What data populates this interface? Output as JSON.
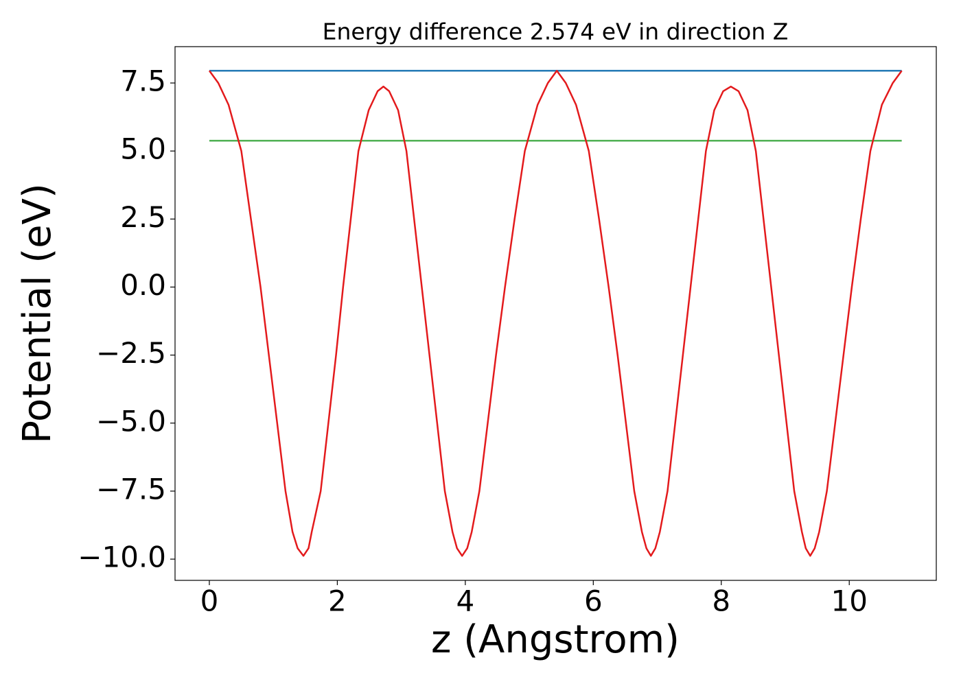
{
  "chart_data": {
    "type": "line",
    "title": "Energy difference 2.574 eV in direction Z",
    "xlabel": "z (Angstrom)",
    "ylabel": "Potential (eV)",
    "xlim": [
      -0.536,
      11.36
    ],
    "ylim": [
      -10.78,
      8.836
    ],
    "xticks": [
      0,
      2,
      4,
      6,
      8,
      10
    ],
    "yticks": [
      {
        "value": 7.5,
        "label": "7.5"
      },
      {
        "value": 5,
        "label": "5.0"
      },
      {
        "value": 2.5,
        "label": "2.5"
      },
      {
        "value": 0,
        "label": "0.0"
      },
      {
        "value": -2.5,
        "label": "−2.5"
      },
      {
        "value": -5,
        "label": "−5.0"
      },
      {
        "value": -7.5,
        "label": "−7.5"
      },
      {
        "value": -10,
        "label": "−10.0"
      }
    ],
    "grid": false,
    "series": [
      {
        "color": "#1f77b4",
        "x": [
          0,
          10.82
        ],
        "values": [
          7.95,
          7.95
        ]
      },
      {
        "color": "#4caf50",
        "x": [
          0,
          10.82
        ],
        "values": [
          5.38,
          5.38
        ]
      },
      {
        "color": "#e31a1c",
        "x": [
          0,
          0.14,
          0.3,
          0.5,
          0.65,
          0.8,
          0.93,
          1.06,
          1.19,
          1.3,
          1.38,
          1.47,
          1.55,
          1.6,
          1.74,
          1.86,
          1.98,
          2.09,
          2.21,
          2.33,
          2.49,
          2.63,
          2.72,
          2.81,
          2.95,
          3.08,
          3.2,
          3.32,
          3.44,
          3.56,
          3.68,
          3.8,
          3.87,
          3.95,
          4.03,
          4.1,
          4.22,
          4.35,
          4.48,
          4.62,
          4.77,
          4.93,
          5.13,
          5.29,
          5.43,
          5.57,
          5.73,
          5.93,
          6.09,
          6.24,
          6.38,
          6.51,
          6.64,
          6.76,
          6.83,
          6.9,
          6.97,
          7.04,
          7.16,
          7.28,
          7.4,
          7.52,
          7.64,
          7.76,
          7.89,
          8.03,
          8.15,
          8.27,
          8.41,
          8.54,
          8.66,
          8.78,
          8.9,
          9.02,
          9.14,
          9.26,
          9.32,
          9.39,
          9.46,
          9.53,
          9.65,
          9.78,
          9.91,
          10.04,
          10.18,
          10.33,
          10.51,
          10.68,
          10.82
        ],
        "values": [
          7.95,
          7.5,
          6.7,
          5,
          2.5,
          0,
          -2.5,
          -5,
          -7.5,
          -9,
          -9.6,
          -9.88,
          -9.6,
          -9,
          -7.5,
          -5,
          -2.5,
          0,
          2.5,
          5,
          6.5,
          7.2,
          7.37,
          7.2,
          6.5,
          5,
          2.5,
          0,
          -2.5,
          -5,
          -7.5,
          -9,
          -9.6,
          -9.88,
          -9.6,
          -9,
          -7.5,
          -5,
          -2.5,
          0,
          2.5,
          5,
          6.7,
          7.5,
          7.95,
          7.5,
          6.7,
          5,
          2.5,
          0,
          -2.5,
          -5,
          -7.5,
          -9,
          -9.6,
          -9.88,
          -9.6,
          -9,
          -7.5,
          -5,
          -2.5,
          0,
          2.5,
          5,
          6.5,
          7.2,
          7.37,
          7.2,
          6.5,
          5,
          2.5,
          0,
          -2.5,
          -5,
          -7.5,
          -9,
          -9.6,
          -9.88,
          -9.6,
          -9,
          -7.5,
          -5,
          -2.5,
          0,
          2.5,
          5,
          6.7,
          7.5,
          7.95
        ]
      }
    ]
  }
}
